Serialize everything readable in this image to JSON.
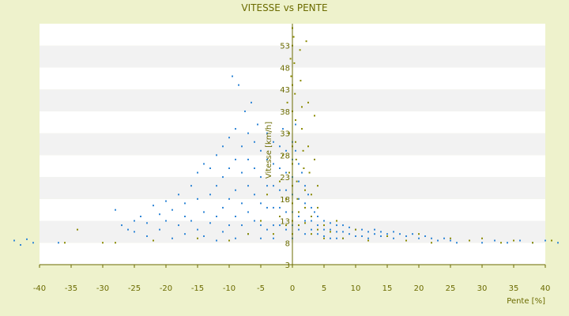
{
  "chart_data": {
    "type": "scatter",
    "title": "VITESSE vs PENTE",
    "xlabel": "Pente [%]",
    "ylabel": "Vitesse [km/h]",
    "xlim": [
      -40,
      40
    ],
    "ylim": [
      3,
      58
    ],
    "xticks": [
      "-40",
      "-35",
      "-30",
      "-25",
      "-20",
      "-15",
      "-10",
      "-5",
      "0",
      "5",
      "10",
      "15",
      "20",
      "25",
      "30",
      "35",
      "40"
    ],
    "yticks": [
      "3",
      "8",
      "13",
      "18",
      "23",
      "28",
      "33",
      "38",
      "43",
      "48",
      "53"
    ],
    "grid": "horizontal bands",
    "legend": "none",
    "colors": {
      "background": "#eef2cc",
      "plot_band_light": "#ffffff",
      "plot_band_dark": "#f2f2f2",
      "series_blue": "#2f86d6",
      "series_olive": "#8a8a00",
      "axis": "#6b6b00",
      "text": "#6b6b00"
    },
    "series": [
      {
        "color": "#2f86d6",
        "points": [
          [
            -44,
            8.5
          ],
          [
            -43,
            7.5
          ],
          [
            -42,
            8.8
          ],
          [
            -41,
            8
          ],
          [
            -37,
            8
          ],
          [
            -28,
            15.5
          ],
          [
            -27,
            12
          ],
          [
            -26,
            11
          ],
          [
            -25,
            10.5
          ],
          [
            -25,
            13
          ],
          [
            -24,
            14
          ],
          [
            -23,
            12.5
          ],
          [
            -23,
            9.5
          ],
          [
            -22,
            16.5
          ],
          [
            -21,
            14.5
          ],
          [
            -21,
            11
          ],
          [
            -20,
            17.5
          ],
          [
            -20,
            13
          ],
          [
            -19,
            15.5
          ],
          [
            -19,
            9
          ],
          [
            -18,
            19
          ],
          [
            -18,
            12
          ],
          [
            -17,
            14
          ],
          [
            -17,
            17
          ],
          [
            -17,
            10
          ],
          [
            -16,
            21
          ],
          [
            -16,
            13
          ],
          [
            -15,
            24
          ],
          [
            -15,
            18
          ],
          [
            -15,
            11
          ],
          [
            -14,
            26
          ],
          [
            -14,
            15
          ],
          [
            -14,
            9.5
          ],
          [
            -13,
            25
          ],
          [
            -13,
            19
          ],
          [
            -13,
            12.5
          ],
          [
            -12,
            28
          ],
          [
            -12,
            21
          ],
          [
            -12,
            14
          ],
          [
            -12,
            8.5
          ],
          [
            -11,
            30
          ],
          [
            -11,
            23
          ],
          [
            -11,
            16
          ],
          [
            -11,
            10.5
          ],
          [
            -10,
            32
          ],
          [
            -10,
            25
          ],
          [
            -10,
            18
          ],
          [
            -10,
            12
          ],
          [
            -9.5,
            46
          ],
          [
            -9,
            34
          ],
          [
            -9,
            27
          ],
          [
            -9,
            20
          ],
          [
            -9,
            14
          ],
          [
            -9,
            9
          ],
          [
            -8.5,
            44
          ],
          [
            -8,
            30
          ],
          [
            -8,
            24
          ],
          [
            -8,
            17
          ],
          [
            -8,
            12
          ],
          [
            -7.5,
            38
          ],
          [
            -7,
            33
          ],
          [
            -7,
            27
          ],
          [
            -7,
            21
          ],
          [
            -7,
            15
          ],
          [
            -7,
            10
          ],
          [
            -6.5,
            40
          ],
          [
            -6,
            31
          ],
          [
            -6,
            25
          ],
          [
            -6,
            19
          ],
          [
            -6,
            13
          ],
          [
            -5.5,
            35
          ],
          [
            -5,
            29
          ],
          [
            -5,
            23
          ],
          [
            -5,
            17
          ],
          [
            -5,
            12
          ],
          [
            -5,
            9
          ],
          [
            -4,
            33
          ],
          [
            -4,
            27
          ],
          [
            -4,
            21
          ],
          [
            -4,
            16
          ],
          [
            -4,
            11
          ],
          [
            -3,
            31
          ],
          [
            -3,
            26
          ],
          [
            -3,
            21
          ],
          [
            -3,
            16
          ],
          [
            -3,
            12
          ],
          [
            -3,
            9
          ],
          [
            -2,
            30
          ],
          [
            -2,
            25
          ],
          [
            -2,
            20
          ],
          [
            -2,
            16
          ],
          [
            -2,
            12
          ],
          [
            -1.5,
            34
          ],
          [
            -1,
            29
          ],
          [
            -1,
            24
          ],
          [
            -1,
            20
          ],
          [
            -1,
            15
          ],
          [
            -1,
            11
          ],
          [
            -0.5,
            33
          ],
          [
            0,
            31
          ],
          [
            0,
            27
          ],
          [
            0,
            23
          ],
          [
            0,
            19
          ],
          [
            0,
            15
          ],
          [
            0,
            12
          ],
          [
            0,
            9
          ],
          [
            0.5,
            35
          ],
          [
            0.5,
            29
          ],
          [
            1,
            26
          ],
          [
            1,
            22
          ],
          [
            1,
            18
          ],
          [
            1,
            14
          ],
          [
            1,
            11
          ],
          [
            1.5,
            24
          ],
          [
            2,
            21
          ],
          [
            2,
            17
          ],
          [
            2,
            13
          ],
          [
            2,
            10
          ],
          [
            2.5,
            19
          ],
          [
            3,
            16
          ],
          [
            3,
            13
          ],
          [
            3,
            11
          ],
          [
            3.5,
            15
          ],
          [
            4,
            14
          ],
          [
            4,
            12
          ],
          [
            4,
            10
          ],
          [
            5,
            13
          ],
          [
            5,
            11
          ],
          [
            5,
            9.5
          ],
          [
            6,
            12.5
          ],
          [
            6,
            11
          ],
          [
            6,
            9
          ],
          [
            7,
            12
          ],
          [
            7,
            10.5
          ],
          [
            7,
            9
          ],
          [
            8,
            12
          ],
          [
            8,
            10.5
          ],
          [
            8,
            9
          ],
          [
            9,
            11.5
          ],
          [
            9,
            10
          ],
          [
            10,
            11
          ],
          [
            10,
            9.5
          ],
          [
            11,
            11
          ],
          [
            11,
            9.5
          ],
          [
            12,
            10.5
          ],
          [
            12,
            9
          ],
          [
            13,
            11
          ],
          [
            13,
            10
          ],
          [
            14,
            10.5
          ],
          [
            14,
            9.5
          ],
          [
            15,
            10
          ],
          [
            16,
            10.5
          ],
          [
            16,
            9
          ],
          [
            17,
            10
          ],
          [
            18,
            9.5
          ],
          [
            19,
            10
          ],
          [
            20,
            9
          ],
          [
            21,
            9.5
          ],
          [
            22,
            9
          ],
          [
            23,
            8.5
          ],
          [
            24,
            9
          ],
          [
            25,
            8.5
          ],
          [
            26,
            8
          ],
          [
            28,
            8.5
          ],
          [
            30,
            8
          ],
          [
            32,
            8.5
          ],
          [
            34,
            8
          ],
          [
            36,
            8.5
          ],
          [
            38,
            8
          ],
          [
            40,
            8.5
          ],
          [
            42,
            8
          ]
        ]
      },
      {
        "color": "#8a8a00",
        "points": [
          [
            -36,
            8
          ],
          [
            -34,
            11
          ],
          [
            -30,
            8
          ],
          [
            -28,
            8
          ],
          [
            -22,
            8.5
          ],
          [
            -15,
            9
          ],
          [
            -10,
            8.5
          ],
          [
            -7,
            10
          ],
          [
            -5,
            13
          ],
          [
            -4,
            19
          ],
          [
            -3,
            10
          ],
          [
            -2,
            22
          ],
          [
            -2,
            14
          ],
          [
            -1.5,
            28
          ],
          [
            -1,
            18
          ],
          [
            -1,
            12
          ],
          [
            -0.8,
            40
          ],
          [
            -0.5,
            33
          ],
          [
            -0.5,
            24
          ],
          [
            -0.3,
            50
          ],
          [
            -0.2,
            46
          ],
          [
            0,
            57
          ],
          [
            0,
            53
          ],
          [
            0,
            44
          ],
          [
            0,
            38
          ],
          [
            0,
            30
          ],
          [
            0,
            26
          ],
          [
            0,
            21
          ],
          [
            0,
            17
          ],
          [
            0,
            13
          ],
          [
            0,
            10
          ],
          [
            0.2,
            55
          ],
          [
            0.3,
            49
          ],
          [
            0.4,
            42
          ],
          [
            0.5,
            36
          ],
          [
            0.5,
            31
          ],
          [
            0.6,
            27
          ],
          [
            0.7,
            22
          ],
          [
            0.8,
            18
          ],
          [
            1,
            15
          ],
          [
            1,
            12
          ],
          [
            1.2,
            52
          ],
          [
            1.3,
            45
          ],
          [
            1.5,
            39
          ],
          [
            1.5,
            34
          ],
          [
            1.7,
            29
          ],
          [
            1.8,
            25
          ],
          [
            2,
            20
          ],
          [
            2,
            16
          ],
          [
            2,
            12.5
          ],
          [
            2.2,
            54
          ],
          [
            2.5,
            40
          ],
          [
            2.5,
            30
          ],
          [
            2.7,
            24
          ],
          [
            3,
            19
          ],
          [
            3,
            14
          ],
          [
            3,
            10
          ],
          [
            3.5,
            37
          ],
          [
            3.5,
            27
          ],
          [
            4,
            21
          ],
          [
            4,
            16
          ],
          [
            4,
            11
          ],
          [
            5,
            12
          ],
          [
            5,
            9
          ],
          [
            6,
            10.5
          ],
          [
            7,
            13
          ],
          [
            8,
            9
          ],
          [
            10,
            11
          ],
          [
            12,
            8.5
          ],
          [
            15,
            9.5
          ],
          [
            18,
            8.5
          ],
          [
            20,
            10
          ],
          [
            22,
            8
          ],
          [
            25,
            9
          ],
          [
            28,
            8.5
          ],
          [
            30,
            9
          ],
          [
            33,
            8
          ],
          [
            35,
            8.5
          ],
          [
            38,
            8
          ],
          [
            41,
            8.5
          ]
        ]
      }
    ]
  }
}
